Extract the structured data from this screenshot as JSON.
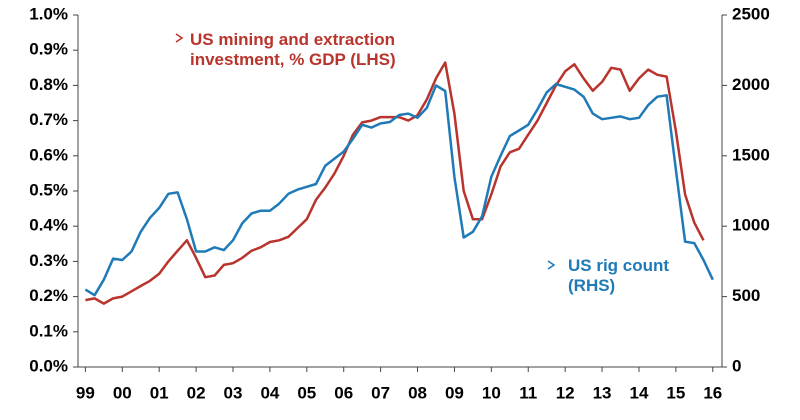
{
  "chart_data": {
    "type": "line",
    "x": [
      1999,
      1999.25,
      1999.5,
      1999.75,
      2000,
      2000.25,
      2000.5,
      2000.75,
      2001,
      2001.25,
      2001.5,
      2001.75,
      2002,
      2002.25,
      2002.5,
      2002.75,
      2003,
      2003.25,
      2003.5,
      2003.75,
      2004,
      2004.25,
      2004.5,
      2004.75,
      2005,
      2005.25,
      2005.5,
      2005.75,
      2006,
      2006.25,
      2006.5,
      2006.75,
      2007,
      2007.25,
      2007.5,
      2007.75,
      2008,
      2008.25,
      2008.5,
      2008.75,
      2009,
      2009.25,
      2009.5,
      2009.75,
      2010,
      2010.25,
      2010.5,
      2010.75,
      2011,
      2011.25,
      2011.5,
      2011.75,
      2012,
      2012.25,
      2012.5,
      2012.75,
      2013,
      2013.25,
      2013.5,
      2013.75,
      2014,
      2014.25,
      2014.5,
      2014.75,
      2015,
      2015.25,
      2015.5,
      2015.75,
      2016
    ],
    "series": [
      {
        "name": "US mining and extraction investment, % GDP (LHS)",
        "color": "#b8342c",
        "values": [
          0.19,
          0.195,
          0.18,
          0.195,
          0.2,
          0.215,
          0.23,
          0.245,
          0.265,
          0.3,
          0.33,
          0.36,
          0.31,
          0.255,
          0.26,
          0.29,
          0.295,
          0.31,
          0.33,
          0.34,
          0.355,
          0.36,
          0.37,
          0.395,
          0.42,
          0.475,
          0.51,
          0.55,
          0.6,
          0.66,
          0.695,
          0.7,
          0.71,
          0.71,
          0.71,
          0.7,
          0.715,
          0.76,
          0.82,
          0.865,
          0.72,
          0.5,
          0.42,
          0.42,
          0.49,
          0.57,
          0.61,
          0.62,
          0.66,
          0.7,
          0.75,
          0.8,
          0.84,
          0.86,
          0.82,
          0.785,
          0.81,
          0.85,
          0.845,
          0.785,
          0.82,
          0.845,
          0.83,
          0.825,
          0.67,
          0.49,
          0.41,
          0.36,
          null
        ]
      },
      {
        "name": "US rig count (RHS)",
        "color": "#1f7ab8",
        "axis": "y2",
        "values": [
          550,
          510,
          620,
          770,
          760,
          820,
          960,
          1060,
          1130,
          1230,
          1240,
          1050,
          820,
          820,
          850,
          830,
          900,
          1020,
          1090,
          1110,
          1110,
          1160,
          1230,
          1260,
          1280,
          1300,
          1430,
          1480,
          1530,
          1620,
          1720,
          1700,
          1730,
          1740,
          1790,
          1800,
          1770,
          1840,
          2000,
          1960,
          1350,
          920,
          960,
          1070,
          1350,
          1500,
          1640,
          1680,
          1720,
          1830,
          1950,
          2010,
          1990,
          1970,
          1920,
          1800,
          1760,
          1770,
          1780,
          1760,
          1770,
          1860,
          1920,
          1930,
          1400,
          890,
          880,
          760,
          620
        ]
      }
    ],
    "xlim": [
      1998.8,
      2016.25
    ],
    "xticks": [
      {
        "value": 1999,
        "label": "99"
      },
      {
        "value": 2000,
        "label": "00"
      },
      {
        "value": 2001,
        "label": "01"
      },
      {
        "value": 2002,
        "label": "02"
      },
      {
        "value": 2003,
        "label": "03"
      },
      {
        "value": 2004,
        "label": "04"
      },
      {
        "value": 2005,
        "label": "05"
      },
      {
        "value": 2006,
        "label": "06"
      },
      {
        "value": 2007,
        "label": "07"
      },
      {
        "value": 2008,
        "label": "08"
      },
      {
        "value": 2009,
        "label": "09"
      },
      {
        "value": 2010,
        "label": "10"
      },
      {
        "value": 2011,
        "label": "11"
      },
      {
        "value": 2012,
        "label": "12"
      },
      {
        "value": 2013,
        "label": "13"
      },
      {
        "value": 2014,
        "label": "14"
      },
      {
        "value": 2015,
        "label": "15"
      },
      {
        "value": 2016,
        "label": "16"
      }
    ],
    "ylim": [
      0,
      1.0
    ],
    "yticks": [
      {
        "value": 0,
        "label": "0.0%"
      },
      {
        "value": 0.1,
        "label": "0.1%"
      },
      {
        "value": 0.2,
        "label": "0.2%"
      },
      {
        "value": 0.3,
        "label": "0.3%"
      },
      {
        "value": 0.4,
        "label": "0.4%"
      },
      {
        "value": 0.5,
        "label": "0.5%"
      },
      {
        "value": 0.6,
        "label": "0.6%"
      },
      {
        "value": 0.7,
        "label": "0.7%"
      },
      {
        "value": 0.8,
        "label": "0.8%"
      },
      {
        "value": 0.9,
        "label": "0.9%"
      },
      {
        "value": 1.0,
        "label": "1.0%"
      }
    ],
    "y2lim": [
      0,
      2500
    ],
    "y2ticks": [
      0,
      500,
      1000,
      1500,
      2000,
      2500
    ]
  }
}
